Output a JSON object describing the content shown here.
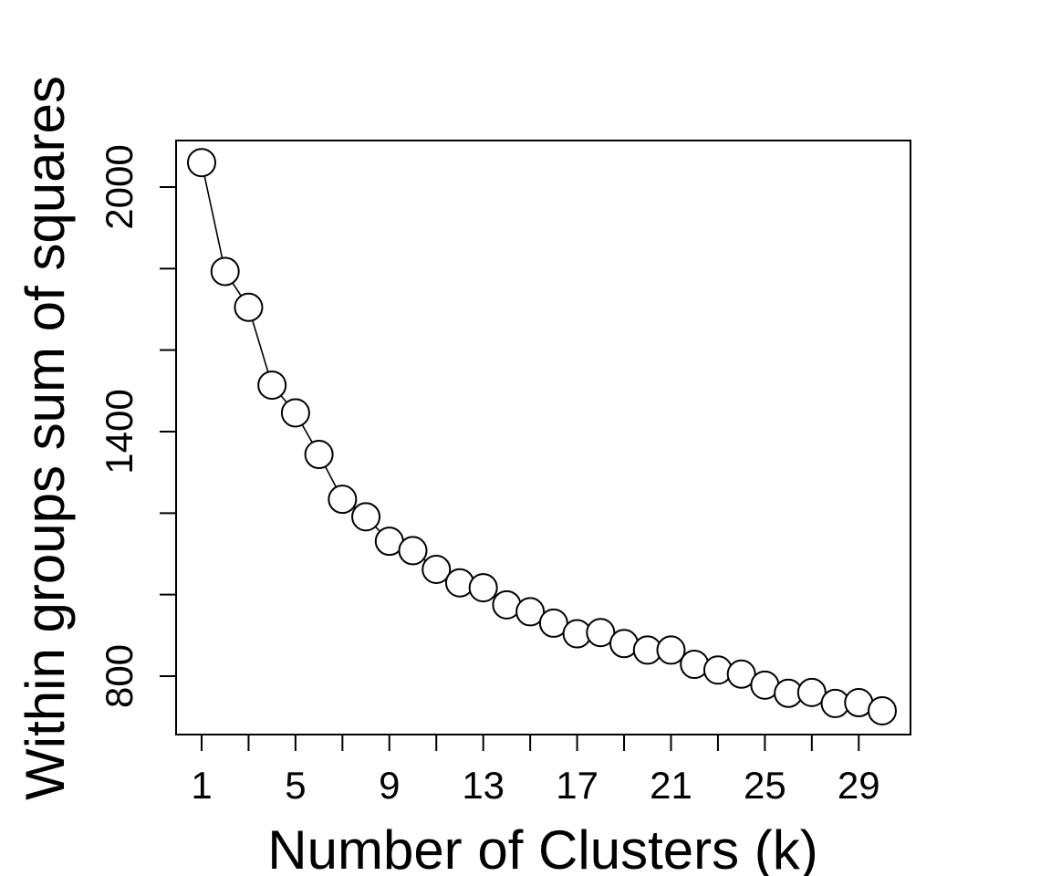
{
  "chart_data": {
    "type": "line",
    "title": "",
    "xlabel": "Number of Clusters (k)",
    "ylabel": "Within groups sum of squares",
    "xlim": [
      1,
      30
    ],
    "ylim": [
      700,
      2100
    ],
    "x_ticks": [
      1,
      3,
      5,
      7,
      9,
      11,
      13,
      15,
      17,
      19,
      21,
      23,
      25,
      27,
      29
    ],
    "x_tick_labels": [
      "1",
      "5",
      "9",
      "13",
      "17",
      "21",
      "25",
      "29"
    ],
    "x_tick_label_values": [
      1,
      5,
      9,
      13,
      17,
      21,
      25,
      29
    ],
    "y_ticks": [
      800,
      1000,
      1200,
      1400,
      1600,
      1800,
      2000
    ],
    "y_tick_labels": [
      "800",
      "1400",
      "2000"
    ],
    "y_tick_label_values": [
      800,
      1400,
      2000
    ],
    "grid": false,
    "markers": "open-circle",
    "series": [
      {
        "x": [
          1,
          2,
          3,
          4,
          5,
          6,
          7,
          8,
          9,
          10,
          11,
          12,
          13,
          14,
          15,
          16,
          17,
          18,
          19,
          20,
          21,
          22,
          23,
          24,
          25,
          26,
          27,
          28,
          29,
          30
        ],
        "values": [
          2060,
          1793,
          1705,
          1514,
          1446,
          1344,
          1234,
          1191,
          1131,
          1108,
          1062,
          1029,
          1017,
          975,
          958,
          930,
          904,
          907,
          880,
          864,
          864,
          829,
          815,
          805,
          778,
          758,
          760,
          733,
          735,
          715
        ]
      }
    ]
  }
}
